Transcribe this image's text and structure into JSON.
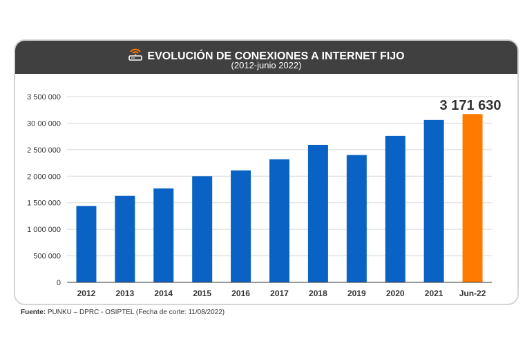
{
  "header": {
    "title": "EVOLUCIÓN DE CONEXIONES A INTERNET FIJO",
    "subtitle": "(2012-junio 2022)"
  },
  "footer": {
    "source_label": "Fuente:",
    "source_text": "PUNKU – DPRC - OSIPTEL (Fecha de corte: 11/08/2022)"
  },
  "colors": {
    "header_bg": "#404040",
    "bar": "#0a62c4",
    "highlight_bar": "#ff7a00"
  },
  "chart_data": {
    "type": "bar",
    "title": "EVOLUCIÓN DE CONEXIONES A INTERNET FIJO",
    "subtitle": "(2012-junio 2022)",
    "categories": [
      "2012",
      "2013",
      "2014",
      "2015",
      "2016",
      "2017",
      "2018",
      "2019",
      "2020",
      "2021",
      "Jun-22"
    ],
    "values": [
      1440000,
      1630000,
      1770000,
      2000000,
      2110000,
      2320000,
      2590000,
      2400000,
      2760000,
      3060000,
      3171630
    ],
    "ylim": [
      0,
      3500000
    ],
    "yticks": [
      0,
      500000,
      1000000,
      1500000,
      2000000,
      2500000,
      3000000,
      3500000
    ],
    "ytick_labels": [
      "0",
      "500 000",
      "1 000 000",
      "1 500 000",
      "2 000 000",
      "2 500 000",
      "30 00 000",
      "3 500 000"
    ],
    "highlight_index": 10,
    "highlight_label": "3 171 630",
    "grid": true,
    "xlabel": "",
    "ylabel": ""
  }
}
